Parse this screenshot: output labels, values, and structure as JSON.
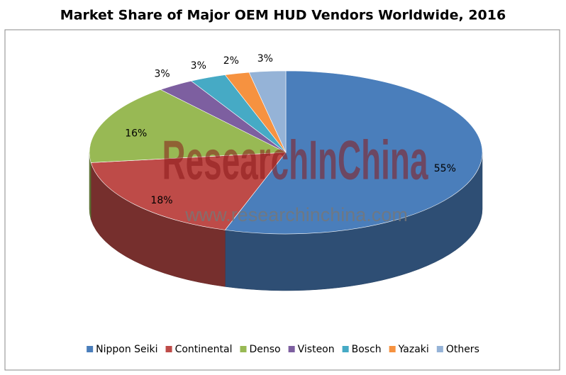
{
  "chart_data": {
    "type": "pie",
    "title": "Market Share of Major OEM HUD Vendors Worldwide, 2016",
    "categories": [
      "Nippon Seiki",
      "Continental",
      "Denso",
      "Visteon",
      "Bosch",
      "Yazaki",
      "Others"
    ],
    "values": [
      55,
      18,
      16,
      3,
      3,
      2,
      3
    ],
    "value_labels": [
      "55%",
      "18%",
      "16%",
      "3%",
      "3%",
      "2%",
      "3%"
    ],
    "colors": [
      "#4a7ebb",
      "#be4b48",
      "#98b954",
      "#7d5fa0",
      "#46aac5",
      "#f69240",
      "#95b3d7"
    ],
    "watermark": "ResearchInChina",
    "watermark_url": "www.researchinchina.com",
    "legend": "bottom"
  }
}
